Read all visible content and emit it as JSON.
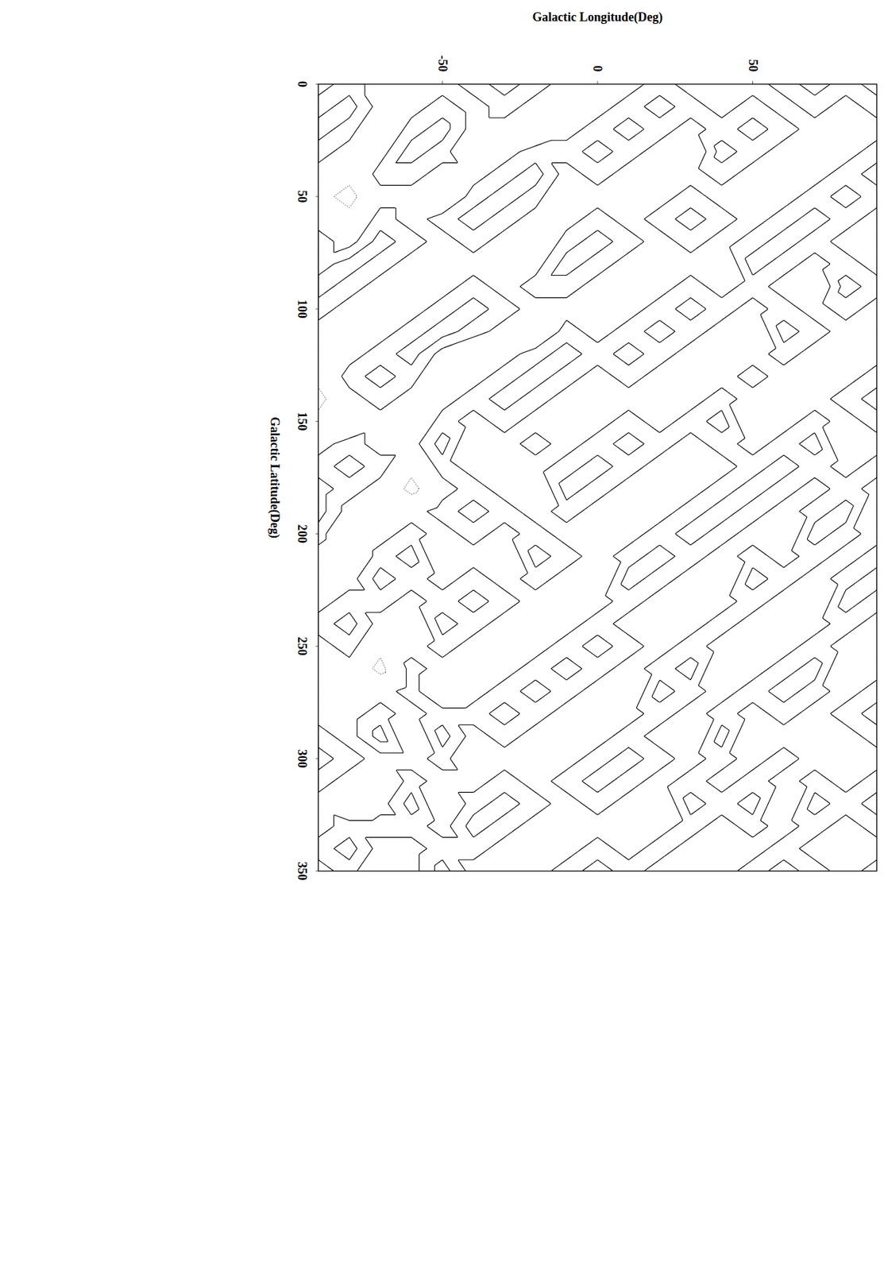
{
  "chart_data": {
    "type": "contour",
    "x_label": "Galactic Latitude(Deg)",
    "y_label": "Galactic Longitude(Deg)",
    "xlim": [
      0,
      350
    ],
    "xticks": [
      0,
      50,
      100,
      150,
      200,
      250,
      300,
      350
    ],
    "ylim": [
      -90,
      90
    ],
    "yticks": [
      -50,
      0,
      50
    ],
    "levels": [
      -1.5,
      0.5,
      1.5
    ],
    "x": [
      0,
      10,
      20,
      30,
      40,
      50,
      60,
      70,
      80,
      90,
      100,
      110,
      120,
      130,
      140,
      150,
      160,
      170,
      180,
      190,
      200,
      210,
      220,
      230,
      240,
      250,
      260,
      270,
      280,
      290,
      300,
      310,
      320,
      330,
      340,
      350
    ],
    "y": [
      -90,
      -80,
      -70,
      -60,
      -50,
      -40,
      -30,
      -20,
      -10,
      0,
      10,
      20,
      30,
      40,
      50,
      60,
      70,
      80,
      90
    ],
    "z": [
      [
        0,
        1,
        2,
        1,
        0,
        -1,
        0,
        1,
        1,
        2,
        1,
        0,
        0,
        -1,
        -2,
        -1,
        0,
        1,
        2,
        2,
        1,
        0,
        -1,
        0,
        1,
        0,
        -1,
        -1,
        0,
        1,
        2,
        1,
        0,
        0,
        1,
        0
      ],
      [
        1,
        2,
        1,
        0,
        -1,
        -2,
        -1,
        0,
        2,
        1,
        0,
        -1,
        0,
        1,
        0,
        -1,
        1,
        2,
        1,
        0,
        -1,
        -1,
        0,
        1,
        2,
        1,
        0,
        -1,
        0,
        0,
        1,
        0,
        -1,
        1,
        2,
        1
      ],
      [
        0,
        0,
        -1,
        0,
        1,
        0,
        1,
        2,
        1,
        0,
        -1,
        0,
        1,
        2,
        1,
        0,
        0,
        1,
        0,
        -1,
        0,
        1,
        2,
        1,
        0,
        -1,
        -2,
        0,
        1,
        2,
        0,
        -1,
        0,
        1,
        0,
        -1
      ],
      [
        -1,
        0,
        1,
        2,
        1,
        0,
        0,
        1,
        0,
        -1,
        0,
        1,
        2,
        1,
        0,
        -1,
        0,
        -1,
        -2,
        0,
        1,
        2,
        1,
        0,
        -1,
        0,
        1,
        1,
        0,
        -1,
        0,
        1,
        2,
        1,
        0,
        0
      ],
      [
        0,
        1,
        2,
        1,
        0,
        -1,
        1,
        0,
        -1,
        0,
        1,
        2,
        0,
        -1,
        0,
        1,
        2,
        1,
        0,
        1,
        0,
        -1,
        0,
        1,
        2,
        1,
        0,
        -1,
        1,
        2,
        1,
        0,
        -1,
        0,
        1,
        2
      ],
      [
        1,
        0,
        0,
        -1,
        0,
        1,
        2,
        1,
        0,
        1,
        2,
        1,
        -1,
        0,
        1,
        0,
        -1,
        0,
        1,
        2,
        1,
        0,
        1,
        2,
        1,
        0,
        -1,
        0,
        1,
        0,
        -1,
        0,
        1,
        2,
        1,
        0
      ],
      [
        2,
        1,
        0,
        0,
        1,
        2,
        1,
        0,
        -1,
        0,
        1,
        0,
        0,
        1,
        2,
        1,
        0,
        -1,
        0,
        1,
        0,
        -1,
        0,
        1,
        0,
        -1,
        0,
        1,
        2,
        1,
        0,
        1,
        2,
        1,
        0,
        -1
      ],
      [
        1,
        0,
        -1,
        1,
        2,
        1,
        0,
        -1,
        0,
        1,
        0,
        -1,
        1,
        2,
        1,
        0,
        1,
        0,
        -1,
        0,
        1,
        2,
        1,
        0,
        -1,
        0,
        1,
        2,
        1,
        0,
        -1,
        0,
        1,
        0,
        -1,
        0
      ],
      [
        0,
        -1,
        0,
        1,
        0,
        -1,
        0,
        1,
        2,
        1,
        0,
        1,
        2,
        1,
        0,
        -1,
        0,
        1,
        2,
        1,
        0,
        1,
        0,
        -1,
        0,
        1,
        2,
        1,
        0,
        -1,
        0,
        1,
        0,
        -1,
        0,
        1
      ],
      [
        -1,
        0,
        1,
        2,
        1,
        0,
        1,
        2,
        1,
        0,
        -1,
        0,
        1,
        0,
        -1,
        0,
        1,
        2,
        1,
        0,
        -1,
        0,
        -1,
        0,
        1,
        2,
        1,
        0,
        -1,
        0,
        1,
        2,
        1,
        0,
        1,
        2
      ],
      [
        0,
        1,
        2,
        1,
        0,
        -1,
        0,
        1,
        0,
        -1,
        0,
        1,
        2,
        1,
        0,
        1,
        2,
        1,
        0,
        -1,
        0,
        1,
        2,
        1,
        0,
        1,
        0,
        -1,
        0,
        1,
        2,
        1,
        0,
        -1,
        0,
        1
      ],
      [
        1,
        2,
        1,
        0,
        -1,
        0,
        1,
        0,
        -1,
        0,
        1,
        2,
        1,
        0,
        -1,
        0,
        1,
        0,
        -1,
        0,
        1,
        2,
        1,
        0,
        -1,
        0,
        1,
        2,
        1,
        0,
        1,
        0,
        -1,
        0,
        1,
        0
      ],
      [
        0,
        1,
        0,
        -1,
        0,
        1,
        2,
        1,
        0,
        1,
        2,
        1,
        0,
        -1,
        0,
        1,
        0,
        -1,
        0,
        1,
        2,
        1,
        0,
        -1,
        0,
        1,
        2,
        1,
        0,
        -1,
        0,
        1,
        2,
        1,
        0,
        -1
      ],
      [
        -1,
        0,
        1,
        2,
        1,
        0,
        1,
        0,
        -1,
        0,
        1,
        0,
        -1,
        0,
        1,
        2,
        1,
        0,
        1,
        2,
        1,
        0,
        -1,
        0,
        1,
        0,
        -1,
        0,
        1,
        2,
        1,
        0,
        1,
        0,
        -1,
        0
      ],
      [
        0,
        1,
        2,
        1,
        0,
        -1,
        0,
        1,
        2,
        1,
        0,
        -1,
        0,
        1,
        0,
        -1,
        0,
        1,
        2,
        1,
        0,
        1,
        2,
        1,
        0,
        -1,
        0,
        1,
        0,
        -1,
        0,
        1,
        2,
        1,
        0,
        1
      ],
      [
        1,
        0,
        1,
        0,
        -1,
        0,
        1,
        2,
        1,
        0,
        1,
        2,
        1,
        0,
        -1,
        0,
        1,
        2,
        1,
        0,
        -1,
        0,
        1,
        0,
        -1,
        0,
        1,
        2,
        1,
        0,
        1,
        0,
        -1,
        0,
        1,
        2
      ],
      [
        2,
        1,
        0,
        -1,
        0,
        1,
        2,
        1,
        0,
        -1,
        0,
        1,
        0,
        -1,
        0,
        1,
        2,
        1,
        0,
        1,
        2,
        1,
        0,
        -1,
        0,
        1,
        2,
        1,
        0,
        -1,
        0,
        1,
        2,
        1,
        0,
        1
      ],
      [
        1,
        0,
        -1,
        0,
        1,
        2,
        1,
        0,
        1,
        2,
        1,
        0,
        -1,
        0,
        1,
        0,
        -1,
        0,
        1,
        2,
        1,
        0,
        1,
        2,
        1,
        0,
        -1,
        0,
        1,
        0,
        -1,
        0,
        1,
        0,
        -1,
        0
      ],
      [
        0,
        1,
        0,
        1,
        2,
        1,
        0,
        -1,
        0,
        1,
        0,
        -1,
        0,
        1,
        2,
        1,
        0,
        1,
        0,
        -1,
        0,
        1,
        2,
        1,
        0,
        -1,
        0,
        1,
        2,
        1,
        0,
        1,
        2,
        1,
        0,
        1
      ]
    ]
  }
}
